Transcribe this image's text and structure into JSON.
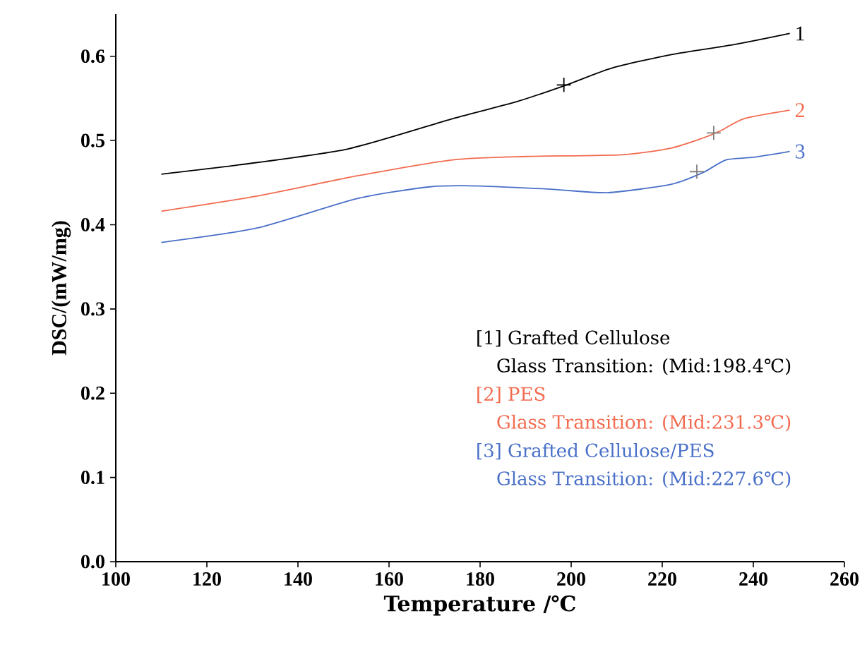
{
  "chart_data": {
    "type": "line",
    "xlabel": "Temperature /℃",
    "ylabel": "DSC/(mW/mg)",
    "xlim": [
      100,
      260
    ],
    "xticks": [
      100,
      120,
      140,
      160,
      180,
      200,
      220,
      240,
      260
    ],
    "ylim": [
      0,
      0.65
    ],
    "yticks": [
      {
        "value": 0,
        "label": "0.0"
      },
      0.1,
      0.2,
      0.3,
      0.4,
      0.5,
      0.6
    ],
    "grid": false,
    "legend": false,
    "marker": "none",
    "line_style": "solid",
    "series": [
      {
        "name": "1",
        "color": "#000000",
        "x": [
          110,
          127,
          151,
          174,
          188,
          199,
          209,
          222,
          236,
          248
        ],
        "values": [
          0.46,
          0.471,
          0.49,
          0.526,
          0.546,
          0.566,
          0.586,
          0.602,
          0.614,
          0.627
        ]
      },
      {
        "name": "2",
        "color": "#f26b4f",
        "x": [
          110,
          131,
          153,
          174,
          190,
          211,
          222,
          229,
          233,
          238,
          248
        ],
        "values": [
          0.416,
          0.434,
          0.458,
          0.477,
          0.481,
          0.483,
          0.491,
          0.503,
          0.512,
          0.526,
          0.536
        ]
      },
      {
        "name": "3",
        "color": "#4a70c8",
        "x": [
          110,
          131,
          153,
          169,
          180,
          196,
          208,
          222,
          229,
          234,
          240,
          248
        ],
        "values": [
          0.379,
          0.396,
          0.431,
          0.445,
          0.446,
          0.442,
          0.438,
          0.448,
          0.462,
          0.477,
          0.48,
          0.487
        ]
      },
      {
        "type": "scatter",
        "marker": "cross",
        "x": [
          198.4,
          231.3,
          227.6
        ],
        "values": [
          0.566,
          0.509,
          0.463
        ],
        "colors": [
          "#000000",
          "#808080",
          "#808080"
        ]
      }
    ],
    "annotations": [
      "[1] Grafted Cellulose",
      "Glass Transition: (Mid:198.4℃)",
      "[2] PES",
      "Glass Transition: (Mid:231.3℃)",
      "[3] Grafted Cellulose/PES",
      "Glass Transition: (Mid:227.6℃)"
    ]
  }
}
